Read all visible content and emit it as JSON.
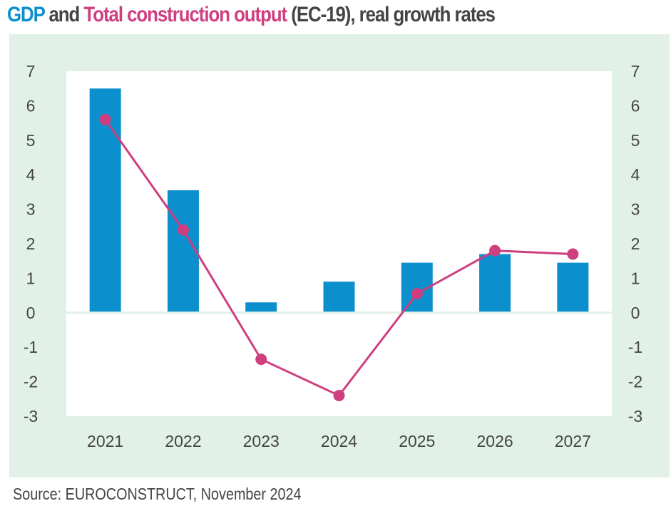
{
  "title": {
    "part1": "GDP",
    "part2": " and ",
    "part3": "Total construction output",
    "part4": " (EC-19), real growth rates"
  },
  "source": "Source: EUROCONSTRUCT, November 2024",
  "colors": {
    "gdp": "#0b8fcd",
    "construction": "#cf3f80",
    "panel": "#e2f1e8",
    "text": "#444444"
  },
  "chart_data": {
    "type": "bar",
    "title": "GDP and Total construction output (EC-19), real growth rates",
    "categories": [
      "2021",
      "2022",
      "2023",
      "2024",
      "2025",
      "2026",
      "2027"
    ],
    "series": [
      {
        "name": "GDP",
        "type": "bar",
        "values": [
          6.5,
          3.55,
          0.3,
          0.9,
          1.45,
          1.7,
          1.45
        ]
      },
      {
        "name": "Total construction output",
        "type": "line",
        "values": [
          5.6,
          2.4,
          -1.35,
          -2.4,
          0.55,
          1.8,
          1.7
        ]
      }
    ],
    "xlabel": "",
    "ylabel": "",
    "ylim": [
      -3,
      7
    ],
    "yticks": [
      "7",
      "6",
      "5",
      "4",
      "3",
      "2",
      "1",
      "0",
      "-1",
      "-2",
      "-3"
    ],
    "secondary_ylim": [
      -3,
      7
    ],
    "grid": false,
    "legend": "title"
  }
}
